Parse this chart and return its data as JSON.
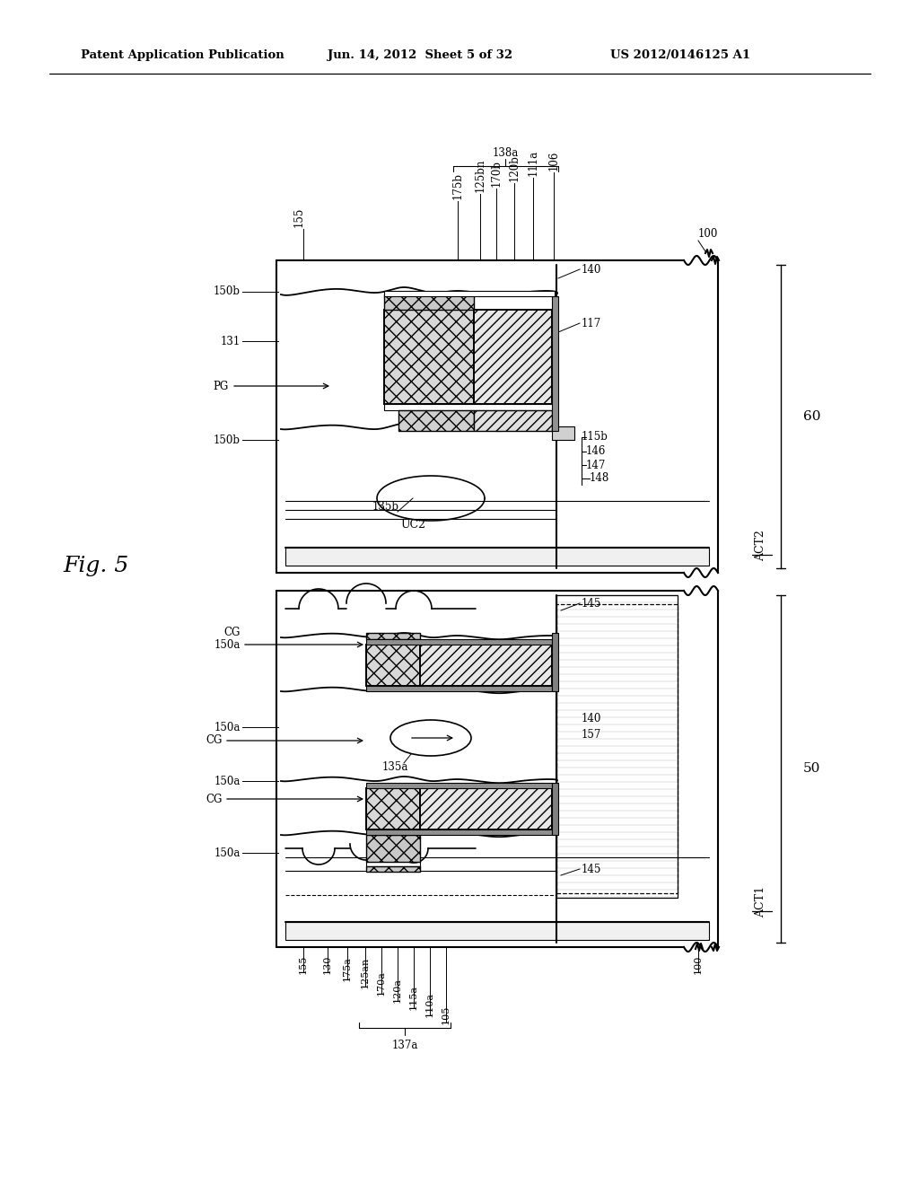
{
  "header_left": "Patent Application Publication",
  "header_mid": "Jun. 14, 2012  Sheet 5 of 32",
  "header_right": "US 2012/0146125 A1",
  "bg": "#ffffff",
  "lc": "#000000",
  "fig_label": "Fig. 5"
}
